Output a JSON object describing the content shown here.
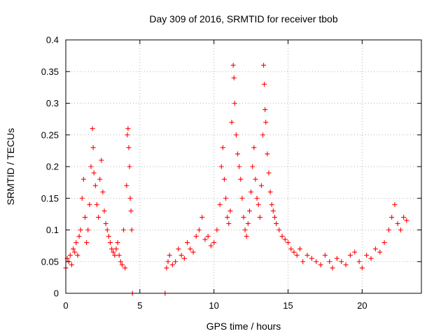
{
  "chart_data": {
    "type": "scatter",
    "title": "Day 309 of 2016, SRMTID for receiver tbob",
    "xlabel": "GPS time / hours",
    "ylabel": "SRMTID / TECUs",
    "xlim": [
      0,
      24
    ],
    "ylim": [
      0,
      0.4
    ],
    "xticks": [
      0,
      5,
      10,
      15,
      20
    ],
    "xtick_labels": [
      "0",
      "5",
      "10",
      "15",
      "20"
    ],
    "yticks": [
      0,
      0.05,
      0.1,
      0.15,
      0.2,
      0.25,
      0.3,
      0.35,
      0.4
    ],
    "ytick_labels": [
      "0",
      "0.05",
      "0.1",
      "0.15",
      "0.2",
      "0.25",
      "0.3",
      "0.35",
      "0.4"
    ],
    "grid": true,
    "marker": "+",
    "color": "#ff0000",
    "series": [
      {
        "name": "SRMTID",
        "x": [
          0.0,
          0.1,
          0.2,
          0.3,
          0.4,
          0.5,
          0.6,
          0.7,
          0.8,
          0.9,
          1.0,
          1.1,
          1.2,
          1.3,
          1.4,
          1.5,
          1.6,
          1.7,
          1.8,
          1.85,
          1.9,
          2.0,
          2.1,
          2.2,
          2.3,
          2.4,
          2.5,
          2.6,
          2.7,
          2.8,
          2.9,
          3.0,
          3.1,
          3.2,
          3.3,
          3.4,
          3.5,
          3.6,
          3.7,
          3.8,
          3.9,
          4.0,
          4.1,
          4.15,
          4.2,
          4.25,
          4.3,
          4.35,
          4.4,
          4.45,
          4.5,
          6.7,
          6.8,
          6.9,
          7.0,
          7.2,
          7.4,
          7.6,
          7.8,
          8.0,
          8.2,
          8.4,
          8.6,
          8.8,
          9.0,
          9.2,
          9.4,
          9.6,
          9.8,
          10.0,
          10.2,
          10.4,
          10.5,
          10.6,
          10.7,
          10.8,
          10.9,
          11.0,
          11.1,
          11.2,
          11.3,
          11.35,
          11.4,
          11.5,
          11.6,
          11.7,
          11.8,
          11.9,
          12.0,
          12.1,
          12.2,
          12.3,
          12.4,
          12.5,
          12.6,
          12.7,
          12.8,
          12.9,
          13.0,
          13.1,
          13.2,
          13.3,
          13.35,
          13.4,
          13.45,
          13.5,
          13.6,
          13.7,
          13.8,
          13.9,
          14.0,
          14.1,
          14.2,
          14.4,
          14.6,
          14.8,
          15.0,
          15.2,
          15.4,
          15.6,
          15.8,
          16.0,
          16.3,
          16.6,
          16.9,
          17.2,
          17.5,
          17.8,
          18.0,
          18.3,
          18.6,
          18.9,
          19.2,
          19.5,
          19.8,
          20.0,
          20.3,
          20.6,
          20.9,
          21.2,
          21.5,
          21.8,
          22.0,
          22.2,
          22.4,
          22.6,
          22.8,
          23.0
        ],
        "y": [
          0.04,
          0.055,
          0.05,
          0.06,
          0.045,
          0.07,
          0.065,
          0.08,
          0.06,
          0.09,
          0.1,
          0.15,
          0.18,
          0.12,
          0.08,
          0.1,
          0.14,
          0.2,
          0.26,
          0.23,
          0.19,
          0.17,
          0.14,
          0.12,
          0.18,
          0.21,
          0.16,
          0.13,
          0.11,
          0.1,
          0.09,
          0.08,
          0.07,
          0.065,
          0.06,
          0.07,
          0.08,
          0.06,
          0.05,
          0.045,
          0.1,
          0.04,
          0.17,
          0.25,
          0.26,
          0.23,
          0.2,
          0.15,
          0.13,
          0.1,
          0.0,
          0.0,
          0.04,
          0.05,
          0.06,
          0.045,
          0.05,
          0.07,
          0.06,
          0.055,
          0.08,
          0.07,
          0.065,
          0.09,
          0.1,
          0.12,
          0.085,
          0.09,
          0.075,
          0.08,
          0.1,
          0.14,
          0.2,
          0.23,
          0.18,
          0.15,
          0.12,
          0.11,
          0.13,
          0.27,
          0.36,
          0.34,
          0.3,
          0.25,
          0.22,
          0.2,
          0.18,
          0.15,
          0.12,
          0.1,
          0.09,
          0.11,
          0.13,
          0.16,
          0.2,
          0.23,
          0.18,
          0.15,
          0.14,
          0.12,
          0.17,
          0.25,
          0.36,
          0.33,
          0.29,
          0.27,
          0.22,
          0.19,
          0.16,
          0.14,
          0.13,
          0.12,
          0.11,
          0.1,
          0.09,
          0.085,
          0.08,
          0.07,
          0.065,
          0.06,
          0.07,
          0.05,
          0.06,
          0.055,
          0.05,
          0.045,
          0.06,
          0.05,
          0.04,
          0.055,
          0.05,
          0.045,
          0.06,
          0.065,
          0.05,
          0.04,
          0.06,
          0.055,
          0.07,
          0.065,
          0.08,
          0.1,
          0.12,
          0.14,
          0.11,
          0.1,
          0.12,
          0.115
        ]
      }
    ]
  }
}
